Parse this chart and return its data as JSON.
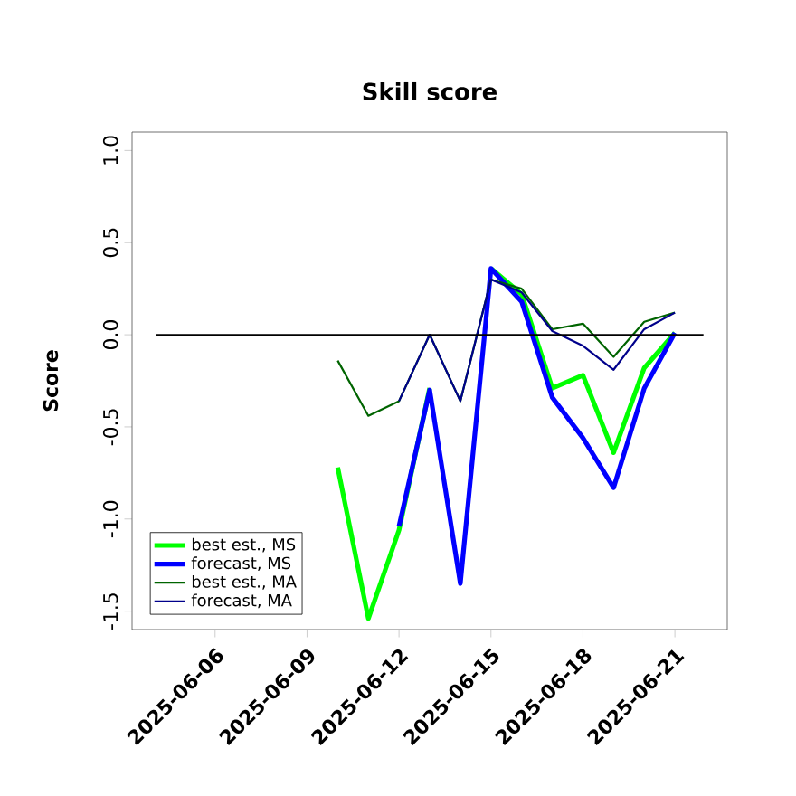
{
  "chart_data": {
    "type": "line",
    "title": "Skill score",
    "ylabel": "Score",
    "xlim": [
      "2025-06-03T07:00",
      "2025-06-22T17:00"
    ],
    "ylim": [
      -1.6,
      1.1
    ],
    "xticks": [
      {
        "value": "2025-06-06",
        "label": "2025-06-06"
      },
      {
        "value": "2025-06-09",
        "label": "2025-06-09"
      },
      {
        "value": "2025-06-12",
        "label": "2025-06-12"
      },
      {
        "value": "2025-06-15",
        "label": "2025-06-15"
      },
      {
        "value": "2025-06-18",
        "label": "2025-06-18"
      },
      {
        "value": "2025-06-21",
        "label": "2025-06-21"
      }
    ],
    "yticks": [
      {
        "value": 1.0,
        "label": "1.0"
      },
      {
        "value": 0.5,
        "label": "0.5"
      },
      {
        "value": 0.0,
        "label": "0.0"
      },
      {
        "value": -0.5,
        "label": "-0.5"
      },
      {
        "value": -1.0,
        "label": "-1.0"
      },
      {
        "value": -1.5,
        "label": "-1.5"
      }
    ],
    "x": [
      "2025-06-10",
      "2025-06-11",
      "2025-06-12",
      "2025-06-13",
      "2025-06-14",
      "2025-06-15",
      "2025-06-16",
      "2025-06-17",
      "2025-06-18",
      "2025-06-19",
      "2025-06-20",
      "2025-06-21"
    ],
    "series": [
      {
        "name": "best est., MS",
        "color": "#00ff00",
        "values": [
          -0.72,
          -1.54,
          -1.06,
          -0.29,
          null,
          0.36,
          0.22,
          -0.29,
          -0.22,
          -0.64,
          -0.18,
          0.01
        ]
      },
      {
        "name": "forecast, MS",
        "color": "#0000ff",
        "values": [
          null,
          null,
          -1.04,
          -0.3,
          -1.35,
          0.36,
          0.18,
          -0.34,
          -0.56,
          -0.83,
          -0.29,
          0.01
        ]
      },
      {
        "name": "best est., MA",
        "color": "#006400",
        "values": [
          -0.14,
          -0.44,
          -0.36,
          0.0,
          -0.36,
          0.3,
          0.25,
          0.03,
          0.06,
          -0.12,
          0.07,
          0.12
        ]
      },
      {
        "name": "forecast, MA",
        "color": "#00008b",
        "values": [
          null,
          null,
          -0.36,
          0.0,
          -0.36,
          0.3,
          0.23,
          0.02,
          -0.06,
          -0.19,
          0.03,
          0.12
        ]
      }
    ],
    "ref_lines": [
      {
        "axis": "y",
        "value": 0,
        "color": "#000000"
      }
    ],
    "grid": false,
    "legend": "bottom left",
    "marker": "none",
    "line_style": "solid"
  }
}
